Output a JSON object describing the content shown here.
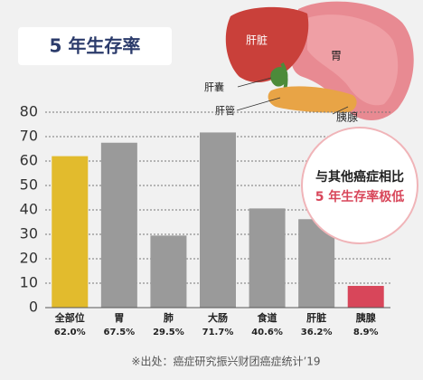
{
  "chart_data": {
    "type": "bar",
    "title": "5 年生存率",
    "categories": [
      "全部位",
      "胃",
      "肺",
      "大肠",
      "食道",
      "肝脏",
      "胰腺"
    ],
    "values": [
      62.0,
      67.5,
      29.5,
      71.7,
      40.6,
      36.2,
      8.9
    ],
    "value_labels": [
      "62.0%",
      "67.5%",
      "29.5%",
      "71.7%",
      "40.6%",
      "36.2%",
      "8.9%"
    ],
    "colors": [
      "#e2bb2d",
      "#9a9a9a",
      "#9a9a9a",
      "#9a9a9a",
      "#9a9a9a",
      "#9a9a9a",
      "#d8465a"
    ],
    "ylim": [
      0,
      80
    ],
    "yticks": [
      0,
      10,
      20,
      30,
      40,
      50,
      60,
      70,
      80
    ],
    "grid": true,
    "annotations": [
      "与其他癌症相比",
      "5 年生存率极低"
    ],
    "organ_labels": [
      "肝脏",
      "胃",
      "肝囊",
      "肝管",
      "胰腺"
    ],
    "source": "※出处：癌症研究振兴财团癌症统计’19"
  }
}
